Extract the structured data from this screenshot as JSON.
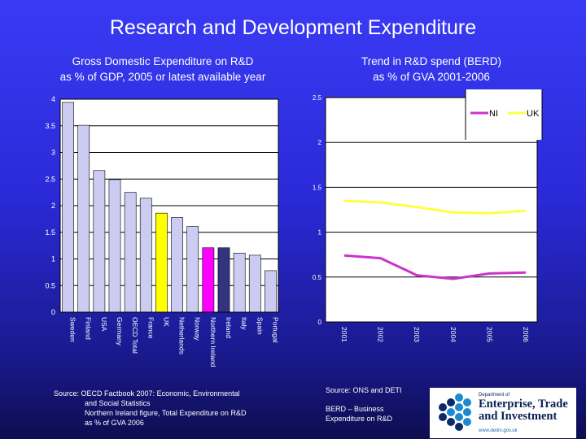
{
  "title": "Research and Development Expenditure",
  "colors": {
    "background_top": "#3a3af5",
    "background_bottom": "#0d0d50",
    "bar_default": "#ccccf2",
    "bar_uk": "#ffff00",
    "bar_ni": "#ff00ff",
    "bar_ireland": "#333380",
    "line_ni": "#cc33cc",
    "line_uk": "#ffff44"
  },
  "left_source": [
    "Source: OECD Factbook 2007: Economic, Environmental",
    "and Social Statistics",
    "Northern Ireland figure, Total Expenditure on R&D",
    "as % of GVA 2006"
  ],
  "right_source": "Source: ONS and DETI",
  "right_note": [
    "BERD – Business",
    "Expenditure on R&D"
  ],
  "logo": {
    "dept": "Department of",
    "name1": "Enterprise, Trade",
    "name2": "and Investment",
    "url": "www.detini.gov.uk"
  },
  "chart_data": [
    {
      "type": "bar",
      "title": "Gross Domestic Expenditure on R&D",
      "subtitle": "as % of GDP, 2005 or latest available year",
      "categories": [
        "Sweden",
        "Finland",
        "USA",
        "Germany",
        "OECD Total",
        "France",
        "UK",
        "Netherlands",
        "Norway",
        "Northern Ireland",
        "Ireland",
        "Italy",
        "Spain",
        "Portugal"
      ],
      "values": [
        3.94,
        3.51,
        2.66,
        2.49,
        2.25,
        2.14,
        1.86,
        1.78,
        1.61,
        1.21,
        1.21,
        1.11,
        1.07,
        0.78
      ],
      "highlight": {
        "UK": "bar_uk",
        "Northern Ireland": "bar_ni",
        "Ireland": "bar_ireland"
      },
      "ylim": [
        0,
        4
      ],
      "yticks": [
        "0",
        "0.5",
        "1",
        "1.5",
        "2",
        "2.5",
        "3",
        "3.5",
        "4"
      ],
      "grid": true
    },
    {
      "type": "line",
      "title": "Trend in R&D spend (BERD)",
      "subtitle": "as % of GVA 2001-2006",
      "x": [
        "2001",
        "2002",
        "2003",
        "2004",
        "2005",
        "2006"
      ],
      "series": [
        {
          "name": "NI",
          "values": [
            0.74,
            0.71,
            0.52,
            0.48,
            0.54,
            0.55
          ]
        },
        {
          "name": "UK",
          "values": [
            1.35,
            1.33,
            1.28,
            1.22,
            1.21,
            1.24
          ]
        }
      ],
      "ylim": [
        0,
        2.5
      ],
      "yticks": [
        "0",
        "0.5",
        "1",
        "1.5",
        "2",
        "2.5"
      ],
      "grid": true,
      "legend": "top-right"
    }
  ]
}
